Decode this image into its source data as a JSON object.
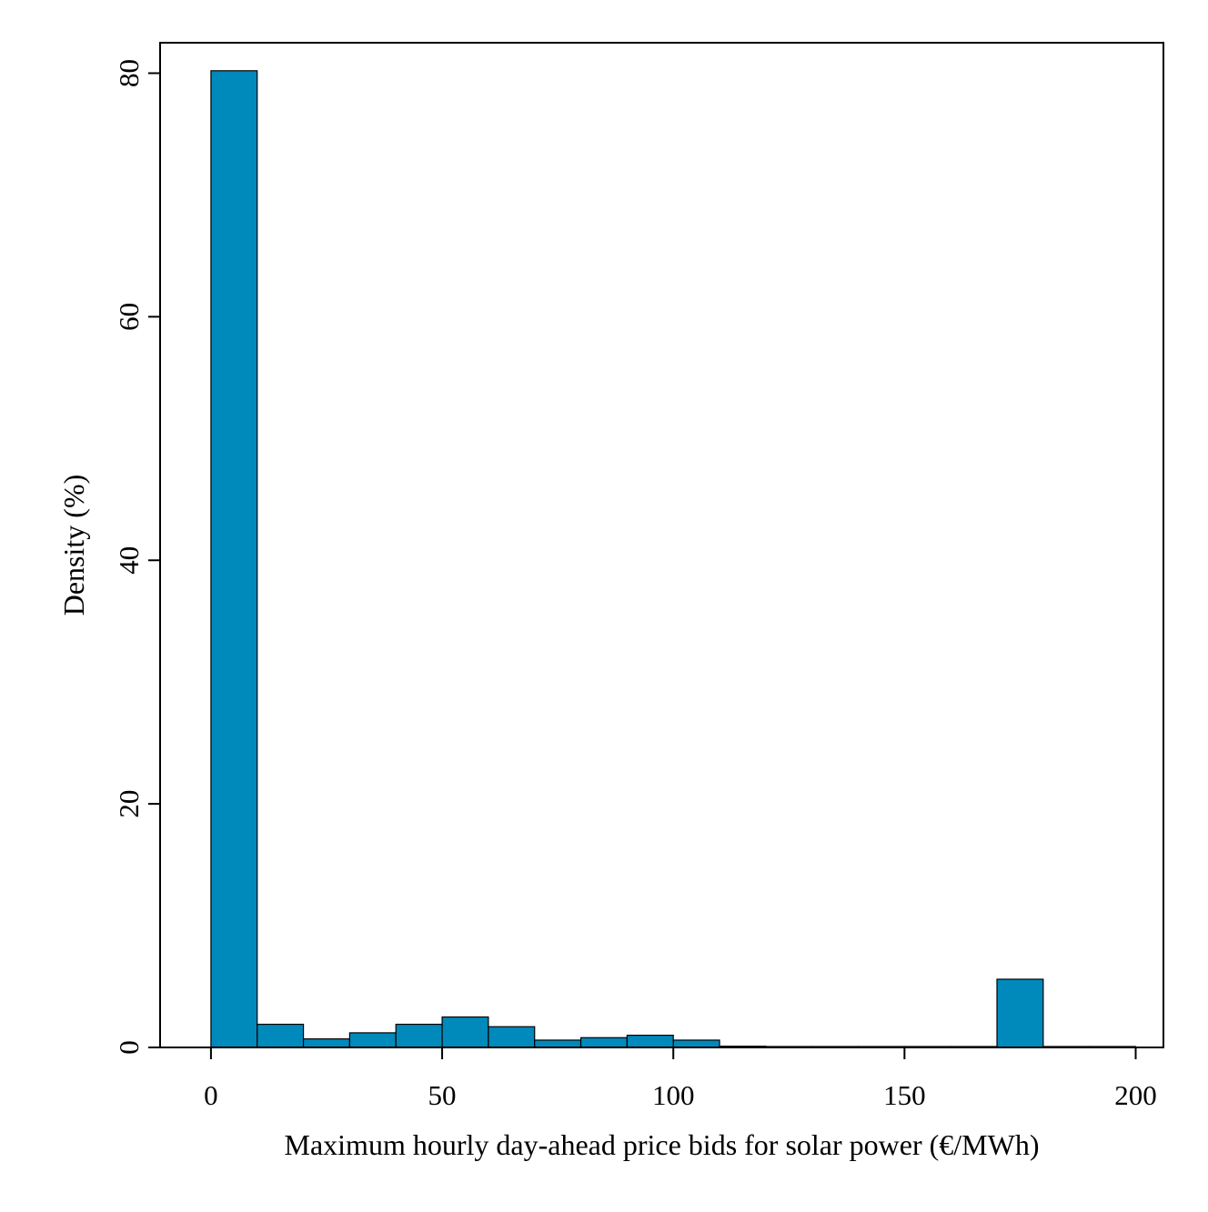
{
  "chart_data": {
    "type": "bar",
    "title": "",
    "xlabel": "Maximum hourly day-ahead price bids for solar power (€/MWh)",
    "ylabel": "Density (%)",
    "xlim": [
      -11,
      206
    ],
    "ylim": [
      0,
      82.5
    ],
    "x_ticks": [
      "0",
      "50",
      "100",
      "150",
      "200"
    ],
    "y_ticks": [
      "0",
      "20",
      "40",
      "60",
      "80"
    ],
    "bin_width": 10,
    "bins": [
      {
        "start": 0,
        "end": 10,
        "value": 80.2
      },
      {
        "start": 10,
        "end": 20,
        "value": 1.9
      },
      {
        "start": 20,
        "end": 30,
        "value": 0.7
      },
      {
        "start": 30,
        "end": 40,
        "value": 1.2
      },
      {
        "start": 40,
        "end": 50,
        "value": 1.9
      },
      {
        "start": 50,
        "end": 60,
        "value": 2.5
      },
      {
        "start": 60,
        "end": 70,
        "value": 1.7
      },
      {
        "start": 70,
        "end": 80,
        "value": 0.6
      },
      {
        "start": 80,
        "end": 90,
        "value": 0.8
      },
      {
        "start": 90,
        "end": 100,
        "value": 1.0
      },
      {
        "start": 100,
        "end": 110,
        "value": 0.6
      },
      {
        "start": 110,
        "end": 120,
        "value": 0.1
      },
      {
        "start": 120,
        "end": 130,
        "value": 0.05
      },
      {
        "start": 130,
        "end": 140,
        "value": 0.05
      },
      {
        "start": 140,
        "end": 150,
        "value": 0.05
      },
      {
        "start": 150,
        "end": 160,
        "value": 0.05
      },
      {
        "start": 160,
        "end": 170,
        "value": 0.05
      },
      {
        "start": 170,
        "end": 180,
        "value": 5.6
      },
      {
        "start": 180,
        "end": 190,
        "value": 0.05
      },
      {
        "start": 190,
        "end": 200,
        "value": 0.05
      }
    ],
    "bar_color": "#0089BB",
    "bar_edge_color": "#000000",
    "grid": false,
    "legend": "none"
  }
}
